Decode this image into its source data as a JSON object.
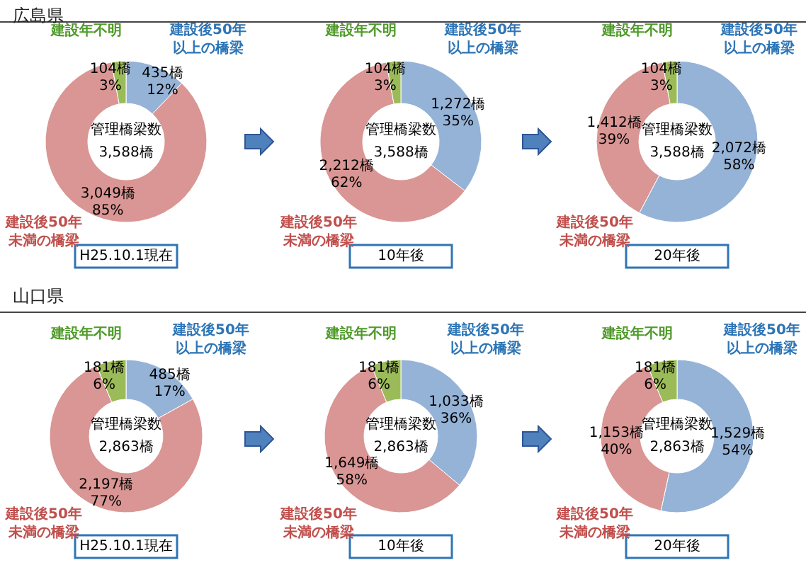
{
  "chart_data": [
    {
      "type": "donut",
      "title": "広島県",
      "categories": [
        "建設後50年以上の橋梁",
        "建設後50年未満の橋梁",
        "建設年不明"
      ],
      "values": [
        435,
        3049,
        104
      ],
      "colors": [
        "#95b3d7",
        "#d99694",
        "#9bbb59"
      ],
      "value_labels": [
        "435橋\n12%",
        "3,049橋\n85%",
        "104橋\n3%"
      ],
      "annotations": [
        "管理橋梁数\n3,588橋",
        "H25.10.1現在"
      ],
      "legend": false
    },
    {
      "type": "donut",
      "categories": [
        "建設後50年以上の橋梁",
        "建設後50年未満の橋梁",
        "建設年不明"
      ],
      "values": [
        1272,
        2212,
        104
      ],
      "colors": [
        "#95b3d7",
        "#d99694",
        "#9bbb59"
      ],
      "value_labels": [
        "1,272橋\n35%",
        "2,212橋\n62%",
        "104橋\n3%"
      ],
      "annotations": [
        "管理橋梁数\n3,588橋",
        "10年後"
      ],
      "legend": false
    },
    {
      "type": "donut",
      "categories": [
        "建設後50年以上の橋梁",
        "建設後50年未満の橋梁",
        "建設年不明"
      ],
      "values": [
        2072,
        1412,
        104
      ],
      "colors": [
        "#95b3d7",
        "#d99694",
        "#9bbb59"
      ],
      "value_labels": [
        "2,072橋\n58%",
        "1,412橋\n39%",
        "104橋\n3%"
      ],
      "annotations": [
        "管理橋梁数\n3,588橋",
        "20年後"
      ],
      "legend": false
    },
    {
      "type": "donut",
      "title": "山口県",
      "categories": [
        "建設後50年以上の橋梁",
        "建設後50年未満の橋梁",
        "建設年不明"
      ],
      "values": [
        485,
        2197,
        181
      ],
      "colors": [
        "#95b3d7",
        "#d99694",
        "#9bbb59"
      ],
      "value_labels": [
        "485橋\n17%",
        "2,197橋\n77%",
        "181橋\n6%"
      ],
      "annotations": [
        "管理橋梁数\n2,863橋",
        "H25.10.1現在"
      ],
      "legend": false
    },
    {
      "type": "donut",
      "categories": [
        "建設後50年以上の橋梁",
        "建設後50年未満の橋梁",
        "建設年不明"
      ],
      "values": [
        1033,
        1649,
        181
      ],
      "colors": [
        "#95b3d7",
        "#d99694",
        "#9bbb59"
      ],
      "value_labels": [
        "1,033橋\n36%",
        "1,649橋\n58%",
        "181橋\n6%"
      ],
      "annotations": [
        "管理橋梁数\n2,863橋",
        "10年後"
      ],
      "legend": false
    },
    {
      "type": "donut",
      "categories": [
        "建設後50年以上の橋梁",
        "建設後50年未満の橋梁",
        "建設年不明"
      ],
      "values": [
        1529,
        1153,
        181
      ],
      "colors": [
        "#95b3d7",
        "#d99694",
        "#9bbb59"
      ],
      "value_labels": [
        "1,529橋\n54%",
        "1,153橋\n40%",
        "181橋\n6%"
      ],
      "annotations": [
        "管理橋梁数\n2,863橋",
        "20年後"
      ],
      "legend": false
    }
  ]
}
